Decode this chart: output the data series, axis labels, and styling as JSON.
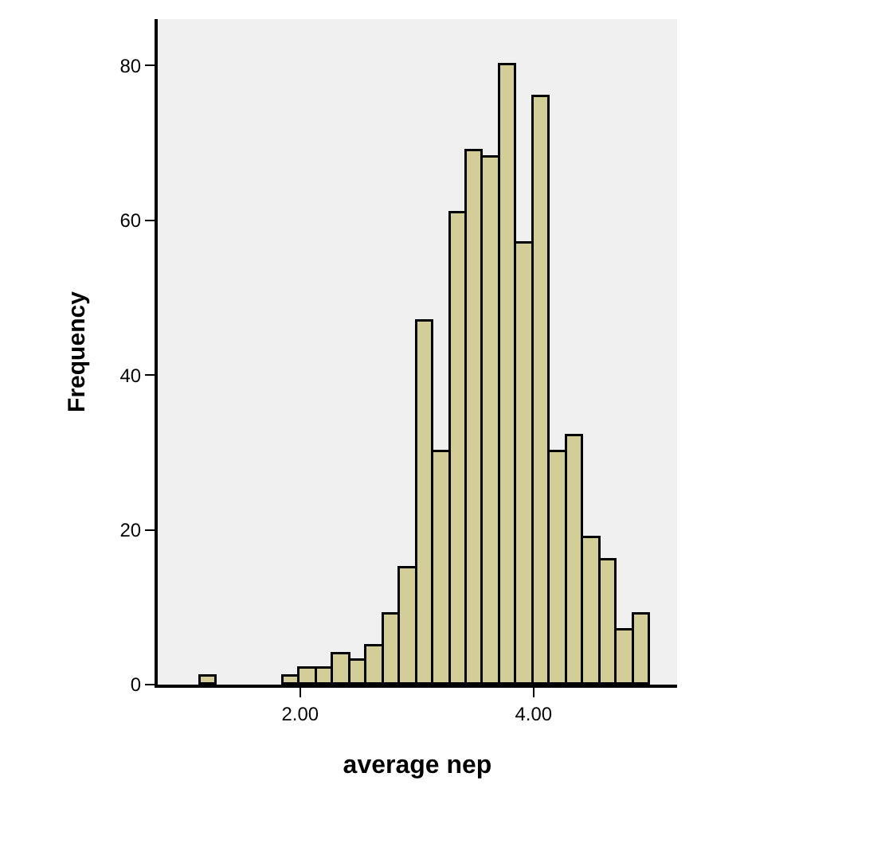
{
  "chart_data": {
    "type": "histogram",
    "xlabel": "average nep",
    "ylabel": "Frequency",
    "bins": [
      1.1429,
      1.2857,
      1.4286,
      1.5714,
      1.7143,
      1.8571,
      2.0,
      2.1429,
      2.2857,
      2.4286,
      2.5714,
      2.7143,
      2.8571,
      3.0,
      3.1429,
      3.2857,
      3.4286,
      3.5714,
      3.7143,
      3.8571,
      4.0,
      4.1429,
      4.2857,
      4.4286,
      4.5714,
      4.7143,
      4.8571,
      5.0
    ],
    "values": [
      1,
      0,
      0,
      0,
      0,
      1,
      2,
      2,
      4,
      3,
      5,
      9,
      15,
      47,
      30,
      61,
      69,
      68,
      80,
      57,
      76,
      30,
      32,
      19,
      16,
      7,
      9
    ],
    "color": "#d3ce97",
    "xlim": [
      0.78,
      5.23
    ],
    "ylim": [
      0,
      86
    ],
    "xticks": [
      {
        "value": 2,
        "label": "2.00"
      },
      {
        "value": 4,
        "label": "4.00"
      }
    ],
    "yticks": [
      0,
      20,
      40,
      60,
      80
    ]
  }
}
